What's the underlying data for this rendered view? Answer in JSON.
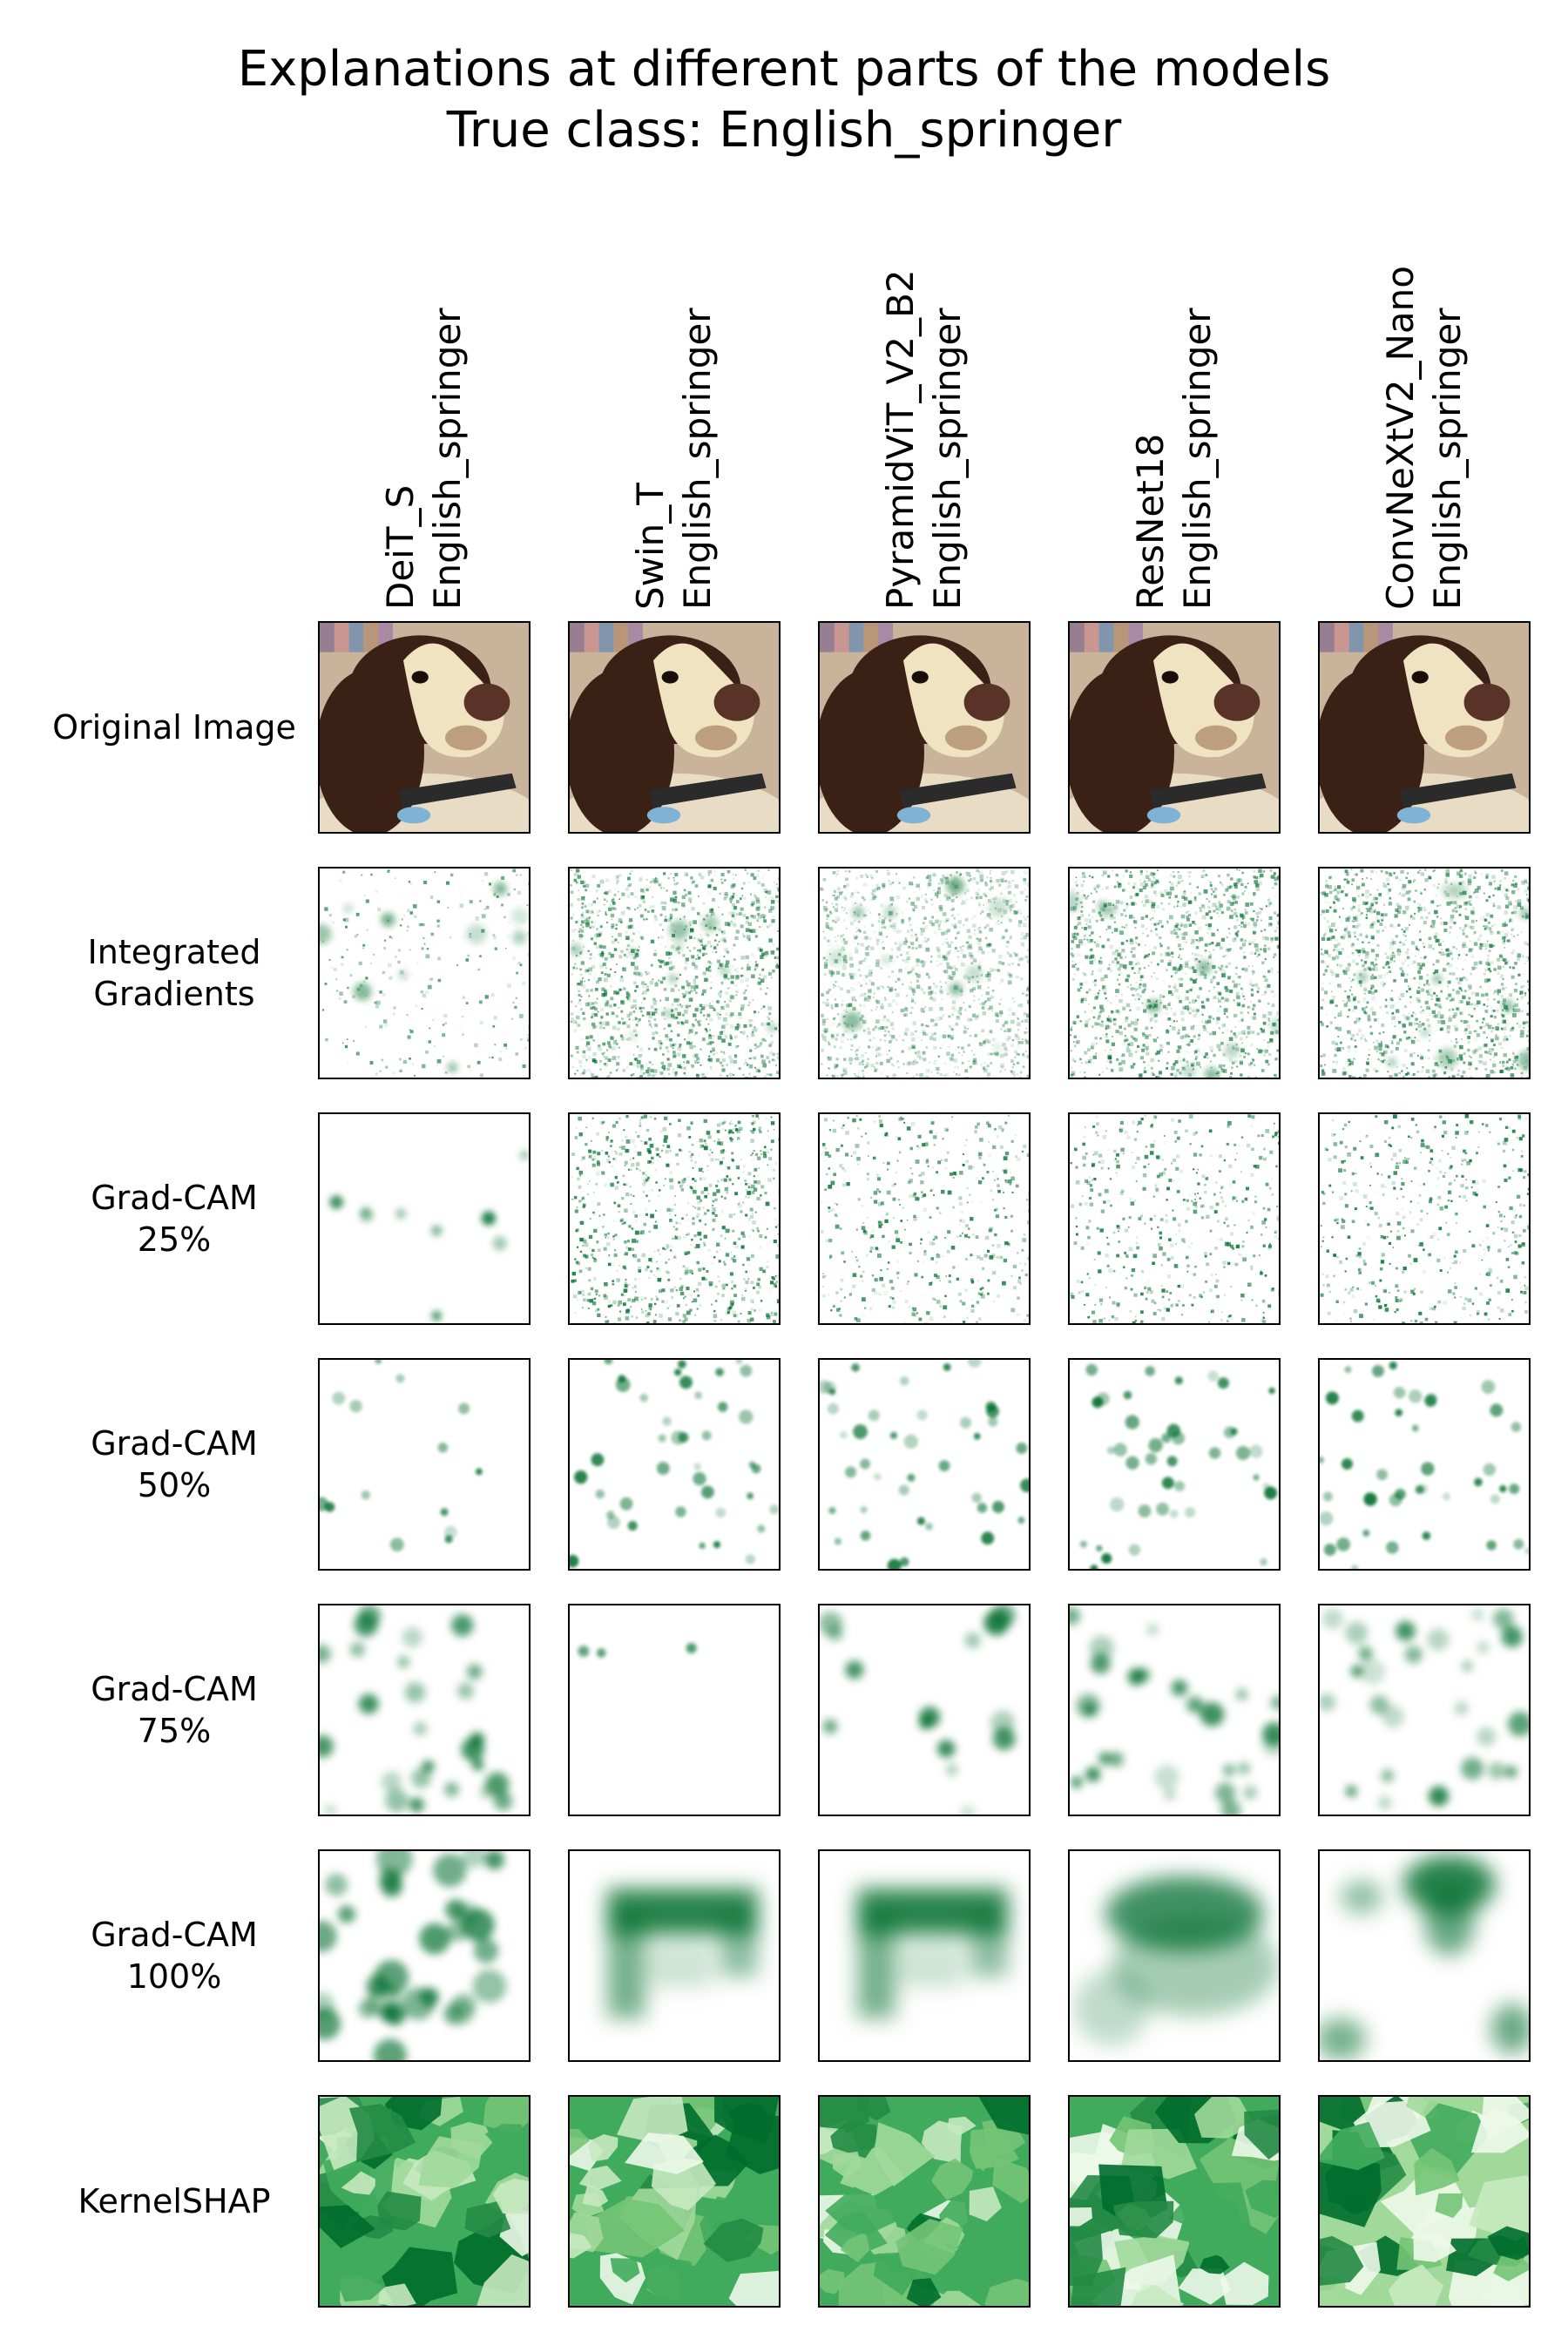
{
  "title": {
    "line1": "Explanations at different parts of the models",
    "line2": "True class: English_springer"
  },
  "columns": [
    {
      "model": "DeiT_S",
      "prediction": "English_springer"
    },
    {
      "model": "Swin_T",
      "prediction": "English_springer"
    },
    {
      "model": "PyramidViT_V2_B2",
      "prediction": "English_springer"
    },
    {
      "model": "ResNet18",
      "prediction": "English_springer"
    },
    {
      "model": "ConvNeXtV2_Nano",
      "prediction": "English_springer"
    }
  ],
  "rows": [
    {
      "label_line1": "Original Image",
      "label_line2": ""
    },
    {
      "label_line1": "Integrated",
      "label_line2": "Gradients"
    },
    {
      "label_line1": "Grad-CAM",
      "label_line2": "25%"
    },
    {
      "label_line1": "Grad-CAM",
      "label_line2": "50%"
    },
    {
      "label_line1": "Grad-CAM",
      "label_line2": "75%"
    },
    {
      "label_line1": "Grad-CAM",
      "label_line2": "100%"
    },
    {
      "label_line1": "KernelSHAP",
      "label_line2": ""
    }
  ],
  "colors": {
    "heatmap": "#006d2c",
    "heatmap_light": "#a1d99b",
    "fur_dark": "#3b2016",
    "fur_light": "#efe3c2",
    "collar": "#2b2b2b",
    "tag": "#7fb3d5"
  }
}
